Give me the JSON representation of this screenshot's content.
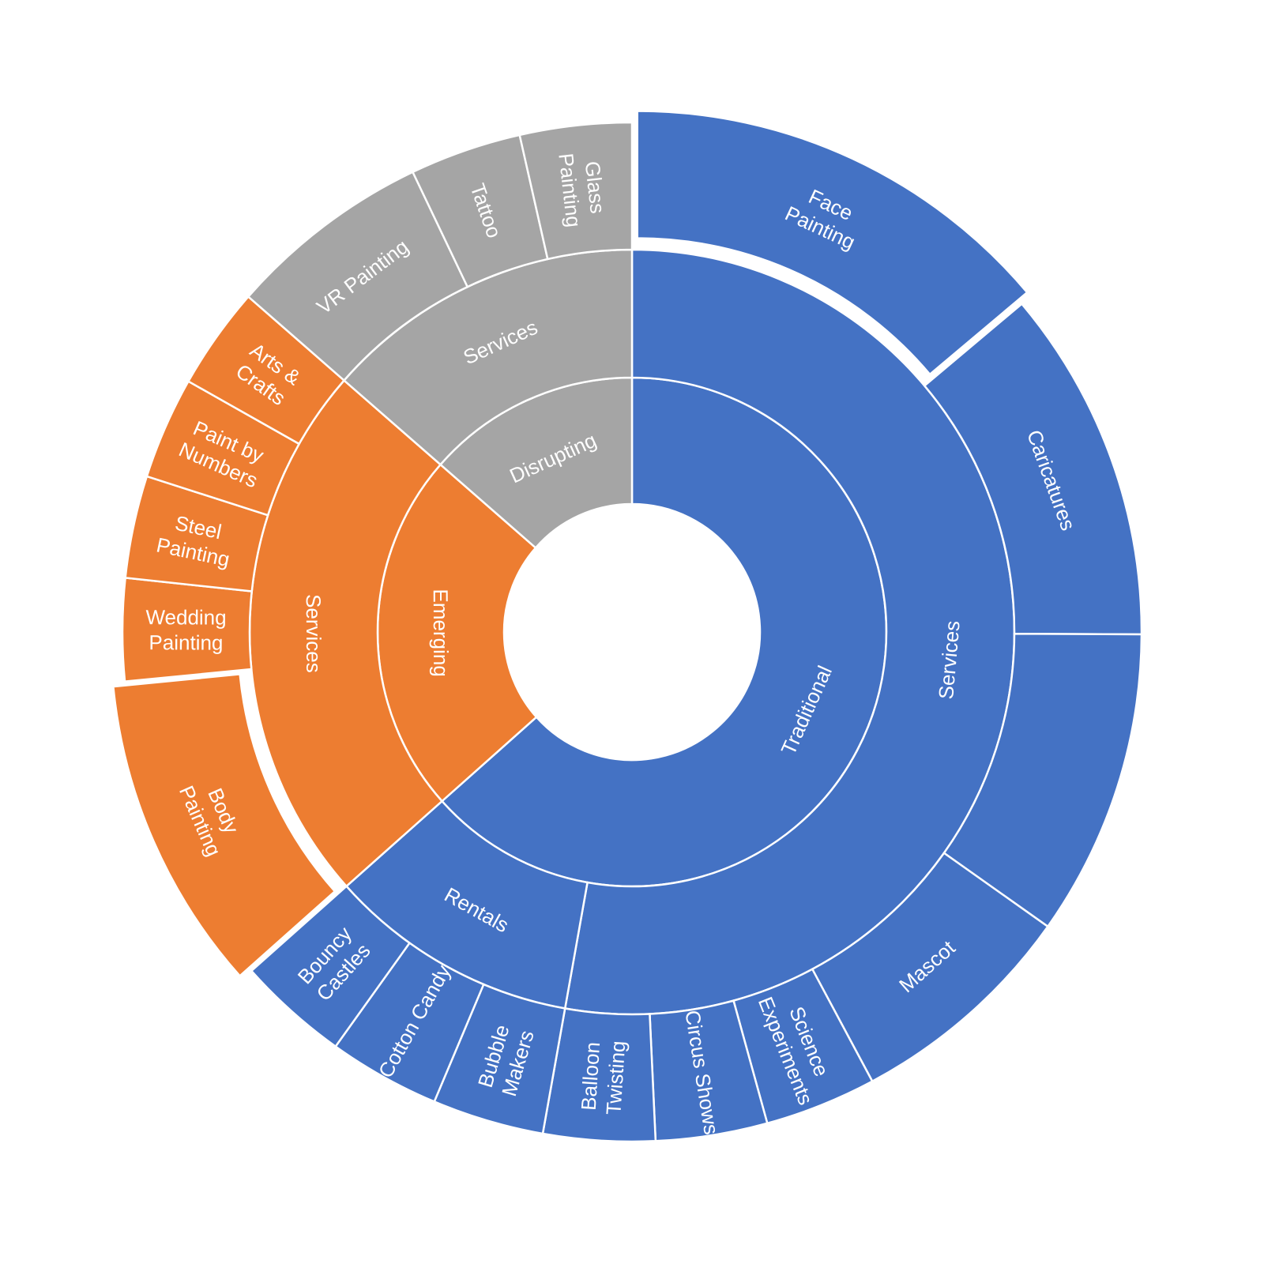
{
  "chart_data": {
    "type": "sunburst",
    "colors": {
      "Traditional": "#4472C4",
      "Emerging": "#ED7D31",
      "Disrupting": "#A5A5A5"
    },
    "start_angle_deg": 0,
    "direction": "clockwise",
    "exploded": [
      "Face Painting",
      "Body Painting"
    ],
    "nodes": [
      {
        "name": "Traditional",
        "children": [
          {
            "name": "Services",
            "children": [
              {
                "name": "Face Painting",
                "value": 47
              },
              {
                "name": "Caricatures",
                "value": 38
              },
              {
                "name": "",
                "value": 33
              },
              {
                "name": "Mascot",
                "value": 25
              },
              {
                "name": "Science Experiments",
                "value": 12
              },
              {
                "name": "Circus Shows",
                "value": 12
              },
              {
                "name": "Balloon Twisting",
                "value": 12
              }
            ]
          },
          {
            "name": "Rentals",
            "children": [
              {
                "name": "Bubble Makers",
                "value": 12
              },
              {
                "name": "Cotton Candy",
                "value": 12
              },
              {
                "name": "Bouncy Castles",
                "value": 12
              }
            ]
          }
        ]
      },
      {
        "name": "Emerging",
        "children": [
          {
            "name": "Services",
            "children": [
              {
                "name": "Body Painting",
                "value": 34
              },
              {
                "name": "Wedding Painting",
                "value": 11
              },
              {
                "name": "Steel Painting",
                "value": 11
              },
              {
                "name": "Paint by Numbers",
                "value": 11
              },
              {
                "name": "Arts & Crafts",
                "value": 11
              }
            ]
          }
        ]
      },
      {
        "name": "Disrupting",
        "children": [
          {
            "name": "Services",
            "children": [
              {
                "name": "VR Painting",
                "value": 22
              },
              {
                "name": "Tattoo",
                "value": 12
              },
              {
                "name": "Glass Painting",
                "value": 12
              }
            ]
          }
        ]
      }
    ]
  }
}
